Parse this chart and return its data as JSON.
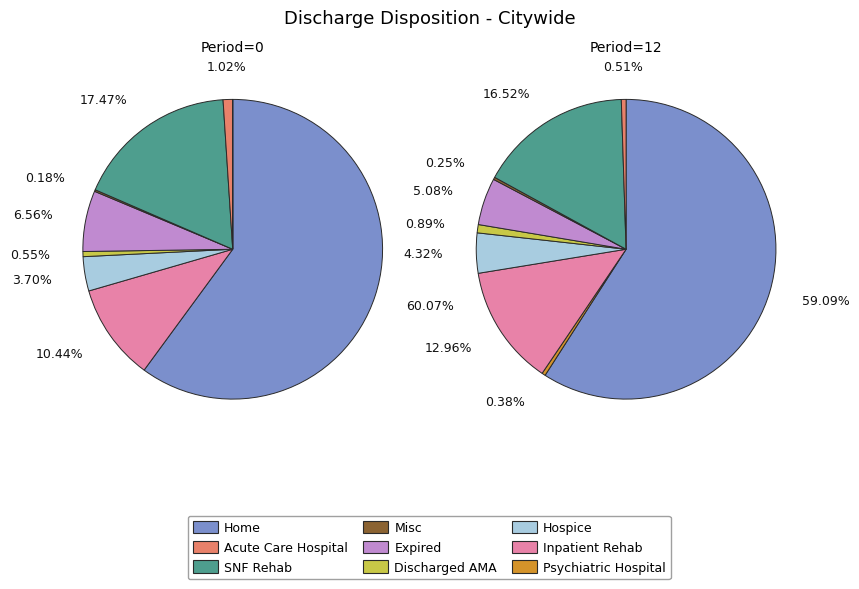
{
  "title": "Discharge Disposition - Citywide",
  "period0_label": "Period=0",
  "period12_label": "Period=12",
  "categories": [
    "Home",
    "Acute Care Hospital",
    "SNF Rehab",
    "Misc",
    "Expired",
    "Discharged AMA",
    "Hospice",
    "Inpatient Rehab",
    "Psychiatric Hospital"
  ],
  "legend_order": [
    "Home",
    "Acute Care Hospital",
    "SNF Rehab",
    "Misc",
    "Expired",
    "Discharged AMA",
    "Hospice",
    "Inpatient Rehab",
    "Psychiatric Hospital"
  ],
  "colors": {
    "Home": "#7b8fcc",
    "Acute Care Hospital": "#e8816a",
    "SNF Rehab": "#4e9e8e",
    "Misc": "#8b6332",
    "Expired": "#c08ad0",
    "Discharged AMA": "#c8c847",
    "Hospice": "#a8cce0",
    "Inpatient Rehab": "#e882a8",
    "Psychiatric Hospital": "#d4932a"
  },
  "period0": [
    {
      "label": "Home",
      "value": 60.07,
      "pct": "60.07%"
    },
    {
      "label": "Inpatient Rehab",
      "value": 10.44,
      "pct": "10.44%"
    },
    {
      "label": "Hospice",
      "value": 3.7,
      "pct": "3.70%"
    },
    {
      "label": "Discharged AMA",
      "value": 0.55,
      "pct": "0.55%"
    },
    {
      "label": "Expired",
      "value": 6.56,
      "pct": "6.56%"
    },
    {
      "label": "Misc",
      "value": 0.18,
      "pct": "0.18%"
    },
    {
      "label": "SNF Rehab",
      "value": 17.47,
      "pct": "17.47%"
    },
    {
      "label": "Acute Care Hospital",
      "value": 1.02,
      "pct": "1.02%"
    },
    {
      "label": "Psychiatric Hospital",
      "value": 0.01,
      "pct": ""
    }
  ],
  "period12": [
    {
      "label": "Home",
      "value": 59.09,
      "pct": "59.09%"
    },
    {
      "label": "Psychiatric Hospital",
      "value": 0.38,
      "pct": "0.38%"
    },
    {
      "label": "Inpatient Rehab",
      "value": 12.96,
      "pct": "12.96%"
    },
    {
      "label": "Hospice",
      "value": 4.32,
      "pct": "4.32%"
    },
    {
      "label": "Discharged AMA",
      "value": 0.89,
      "pct": "0.89%"
    },
    {
      "label": "Expired",
      "value": 5.08,
      "pct": "5.08%"
    },
    {
      "label": "Misc",
      "value": 0.25,
      "pct": "0.25%"
    },
    {
      "label": "SNF Rehab",
      "value": 16.52,
      "pct": "16.52%"
    },
    {
      "label": "Acute Care Hospital",
      "value": 0.51,
      "pct": "0.51%"
    }
  ],
  "background_color": "#ffffff",
  "edge_color": "#2a2a2a",
  "title_fontsize": 13,
  "subtitle_fontsize": 10,
  "label_fontsize": 9,
  "legend_fontsize": 9,
  "startangle": 90
}
